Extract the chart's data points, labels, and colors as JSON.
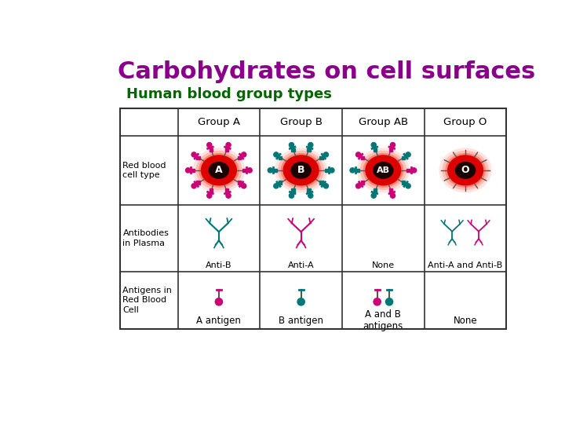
{
  "title": "Carbohydrates on cell surfaces",
  "subtitle": "Human blood group types",
  "title_color": "#8B008B",
  "subtitle_color": "#006600",
  "title_fontsize": 22,
  "subtitle_fontsize": 13,
  "groups": [
    "Group A",
    "Group B",
    "Group AB",
    "Group O"
  ],
  "row_labels": [
    "Red blood\ncell type",
    "Antibodies\nin Plasma",
    "Antigens in\nRed Blood\nCell"
  ],
  "antibody_labels": [
    "Anti-B",
    "Anti-A",
    "None",
    "Anti-A and Anti-B"
  ],
  "antigen_labels": [
    "A antigen",
    "B antigen",
    "A and B\nantigens",
    "None"
  ],
  "cell_labels": [
    "A",
    "B",
    "AB",
    "O"
  ],
  "bg_color": "#ffffff",
  "table_line_color": "#333333",
  "antigen_A_color": "#CC0077",
  "antigen_B_color": "#007777",
  "text_color": "#000000",
  "cell_red": "#cc0000",
  "cell_dark": "#1a0000"
}
